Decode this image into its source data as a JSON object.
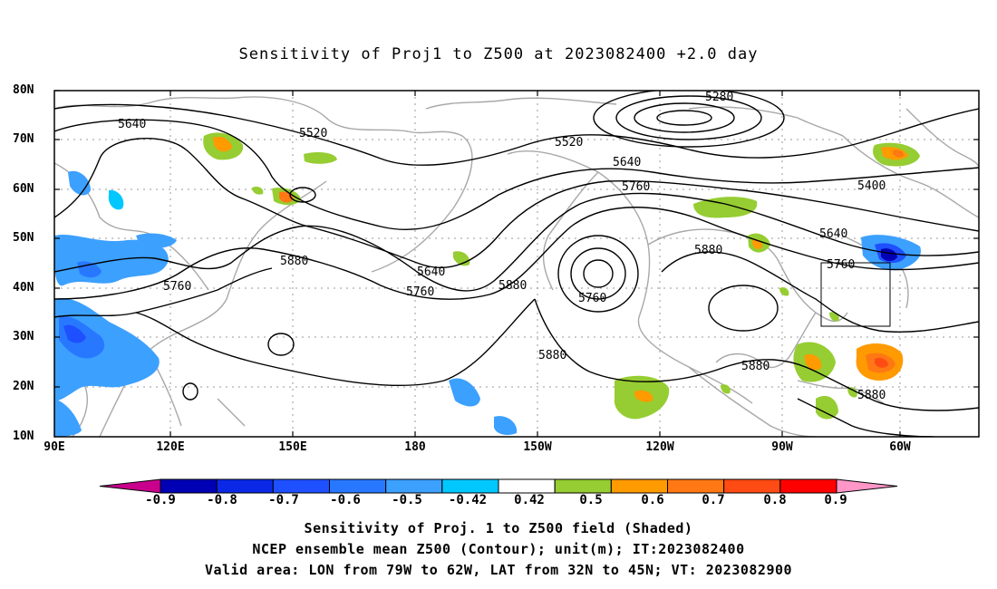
{
  "title": "Sensitivity of Proj1 to Z500 at 2023082400 +2.0 day",
  "lat_labels": [
    "80N",
    "70N",
    "60N",
    "50N",
    "40N",
    "30N",
    "20N",
    "10N"
  ],
  "lon_labels": [
    "90E",
    "120E",
    "150E",
    "180",
    "150W",
    "120W",
    "90W",
    "60W"
  ],
  "contour_labels": [
    "5640",
    "5520",
    "5280",
    "5520",
    "5640",
    "5400",
    "5760",
    "5640",
    "5760",
    "5640",
    "5760",
    "5880",
    "5880",
    "5760",
    "5880",
    "5760",
    "5880",
    "5880",
    "5880"
  ],
  "colorbar": {
    "labels": [
      "-0.9",
      "-0.8",
      "-0.7",
      "-0.6",
      "-0.5",
      "-0.42",
      "0.42",
      "0.5",
      "0.6",
      "0.7",
      "0.8",
      "0.9"
    ],
    "colors": [
      "#c8008c",
      "#0000b4",
      "#0a28e6",
      "#1e50ff",
      "#2878ff",
      "#3ca0ff",
      "#00c8ff",
      "#ffffff",
      "#96cd32",
      "#ff9a00",
      "#ff7814",
      "#ff4b14",
      "#ff0000",
      "#ff96c8"
    ]
  },
  "captions": [
    "Sensitivity of Proj. 1 to Z500 field (Shaded)",
    "NCEP ensemble mean Z500 (Contour); unit(m); IT:2023082400",
    "Valid area: LON from 79W to 62W, LAT from 32N to 45N; VT: 2023082900"
  ]
}
